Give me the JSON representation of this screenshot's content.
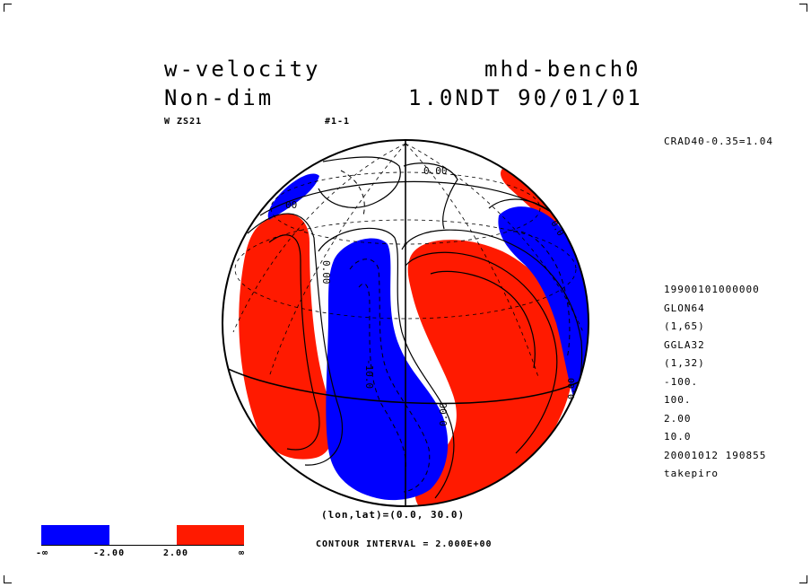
{
  "header": {
    "variable": "w-velocity",
    "experiment": "mhd-bench0",
    "units": "Non-dim",
    "time": "1.0NDT 90/01/01",
    "sub_left": "W ZS21",
    "sub_right": "#1-1"
  },
  "side_top": "CRAD40-0.35=1.04",
  "side_info": [
    "19900101000000",
    "GLON64",
    "(1,65)",
    "GGLA32",
    "(1,32)",
    "-100.",
    "100.",
    "2.00",
    "10.0",
    "20001012 190855",
    "takepiro"
  ],
  "projection_label": "(lon,lat)=(0.0, 30.0)",
  "contour_interval": "CONTOUR INTERVAL = 2.000E+00",
  "colorbar": {
    "labels": [
      "-∞",
      "-2.00",
      "2.00",
      "∞"
    ],
    "colors": {
      "negative": "#0000ff",
      "neutral": "#ffffff",
      "positive": "#ff1a00"
    }
  },
  "contour_labels": {
    "top": "0.00",
    "left_upper": "00",
    "left_mid": "0.00",
    "center": "-10.0",
    "right_mid": "0.00",
    "right_low": "0.00",
    "right_top": "0.0"
  }
}
